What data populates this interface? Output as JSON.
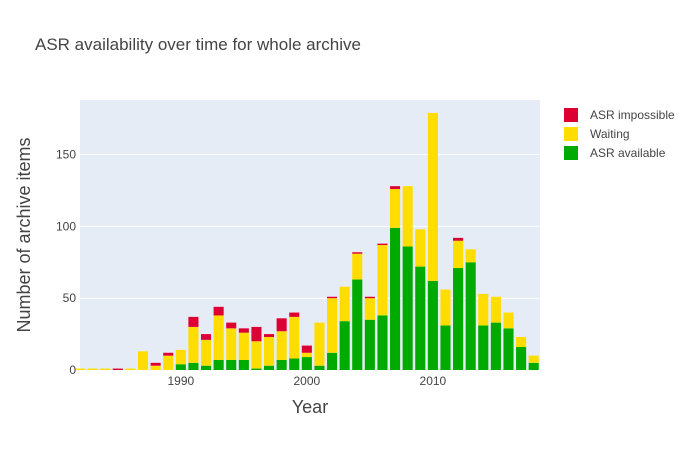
{
  "chart_data": {
    "type": "bar",
    "stacked": true,
    "title": "ASR availability over time for whole archive",
    "xlabel": "Year",
    "ylabel": "Number of archive items",
    "xlim": [
      1982,
      2018.5
    ],
    "ylim": [
      0,
      188
    ],
    "x_ticks": [
      1990,
      2000,
      2010
    ],
    "y_ticks": [
      0,
      50,
      100,
      150
    ],
    "grid": true,
    "legend_position": "top-right",
    "years": [
      1982,
      1983,
      1984,
      1985,
      1986,
      1987,
      1988,
      1989,
      1990,
      1991,
      1992,
      1993,
      1994,
      1995,
      1996,
      1997,
      1998,
      1999,
      2000,
      2001,
      2002,
      2003,
      2004,
      2005,
      2006,
      2007,
      2008,
      2009,
      2010,
      2011,
      2012,
      2013,
      2014,
      2015,
      2016,
      2017,
      2018
    ],
    "series": [
      {
        "name": "ASR available",
        "color": "#00aa00",
        "values": [
          0,
          0,
          0,
          0,
          0,
          0,
          0,
          0,
          4,
          5,
          3,
          7,
          7,
          7,
          1,
          3,
          7,
          8,
          9,
          3,
          12,
          34,
          63,
          35,
          38,
          99,
          86,
          72,
          62,
          31,
          71,
          75,
          31,
          33,
          29,
          16,
          5
        ]
      },
      {
        "name": "Waiting",
        "color": "#ffdd00",
        "values": [
          1,
          1,
          1,
          0,
          1,
          13,
          3,
          10,
          10,
          25,
          18,
          31,
          22,
          19,
          19,
          20,
          20,
          29,
          3,
          30,
          38,
          24,
          18,
          15,
          49,
          27,
          42,
          26,
          117,
          25,
          19,
          9,
          22,
          18,
          11,
          7,
          5
        ]
      },
      {
        "name": "ASR impossible",
        "color": "#dd0033",
        "values": [
          0,
          0,
          0,
          1,
          0,
          0,
          2,
          2,
          0,
          7,
          4,
          6,
          4,
          3,
          10,
          2,
          9,
          3,
          5,
          0,
          1,
          0,
          1,
          1,
          1,
          2,
          0,
          0,
          0,
          0,
          2,
          0,
          0,
          0,
          0,
          0,
          0
        ]
      }
    ],
    "legend_order": [
      "ASR impossible",
      "Waiting",
      "ASR available"
    ]
  }
}
